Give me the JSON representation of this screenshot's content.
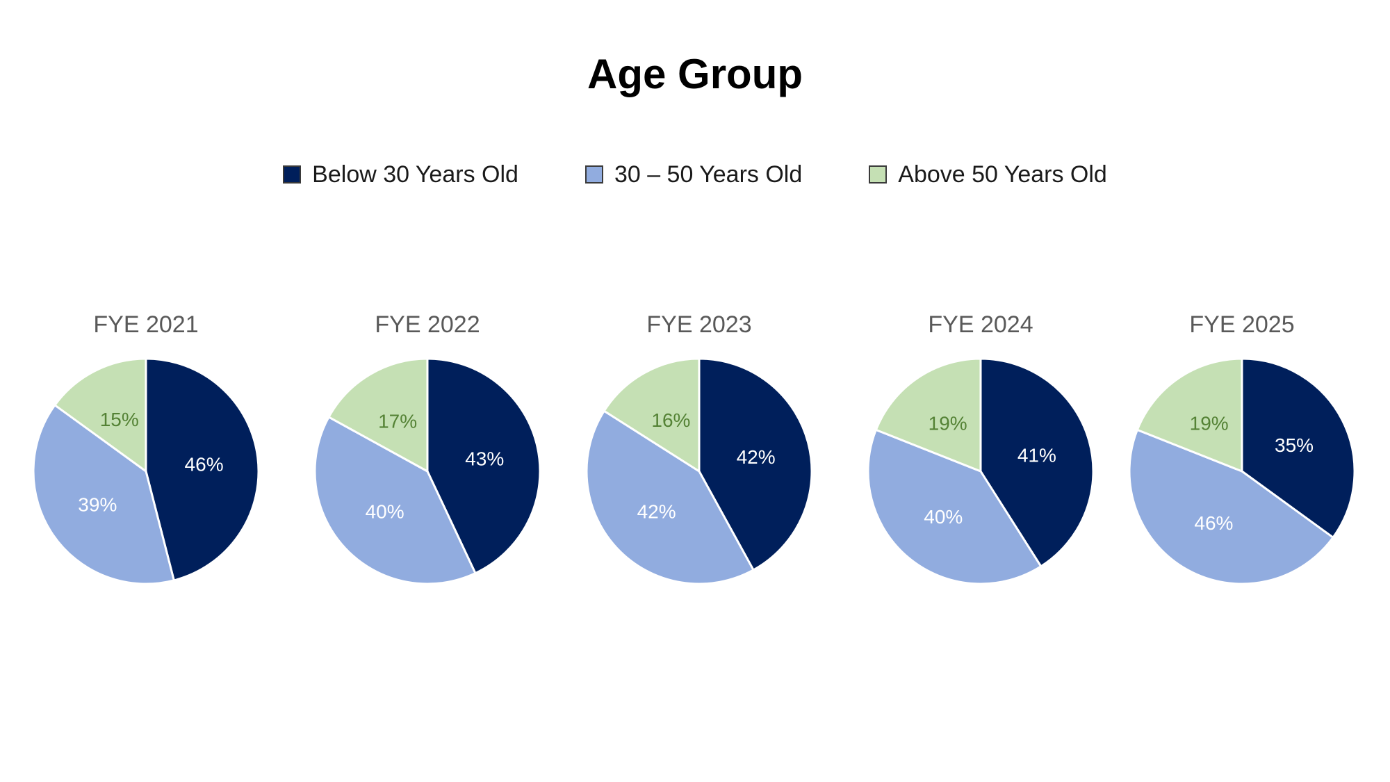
{
  "title": "Age Group",
  "legend": [
    {
      "label": "Below 30 Years Old",
      "color": "#001f5b"
    },
    {
      "label": "30 – 50 Years Old",
      "color": "#91acdf"
    },
    {
      "label": "Above 50 Years Old",
      "color": "#c5e0b4"
    }
  ],
  "label_colors": [
    "#ffffff",
    "#ffffff",
    "#548235"
  ],
  "chart_data": [
    {
      "type": "pie",
      "title": "FYE 2021",
      "categories": [
        "Below 30 Years Old",
        "30 – 50 Years Old",
        "Above 50 Years Old"
      ],
      "values": [
        46,
        39,
        15
      ],
      "labels": [
        "46%",
        "39%",
        "15%"
      ]
    },
    {
      "type": "pie",
      "title": "FYE 2022",
      "categories": [
        "Below 30 Years Old",
        "30 – 50 Years Old",
        "Above 50 Years Old"
      ],
      "values": [
        43,
        40,
        17
      ],
      "labels": [
        "43%",
        "40%",
        "17%"
      ]
    },
    {
      "type": "pie",
      "title": "FYE 2023",
      "categories": [
        "Below 30 Years Old",
        "30 – 50 Years Old",
        "Above 50 Years Old"
      ],
      "values": [
        42,
        42,
        16
      ],
      "labels": [
        "42%",
        "42%",
        "16%"
      ]
    },
    {
      "type": "pie",
      "title": "FYE 2024",
      "categories": [
        "Below 30 Years Old",
        "30 – 50 Years Old",
        "Above 50 Years Old"
      ],
      "values": [
        41,
        40,
        19
      ],
      "labels": [
        "41%",
        "40%",
        "19%"
      ]
    },
    {
      "type": "pie",
      "title": "FYE 2025",
      "categories": [
        "Below 30 Years Old",
        "30 – 50 Years Old",
        "Above 50 Years Old"
      ],
      "values": [
        35,
        46,
        19
      ],
      "labels": [
        "35%",
        "46%",
        "19%"
      ]
    }
  ]
}
